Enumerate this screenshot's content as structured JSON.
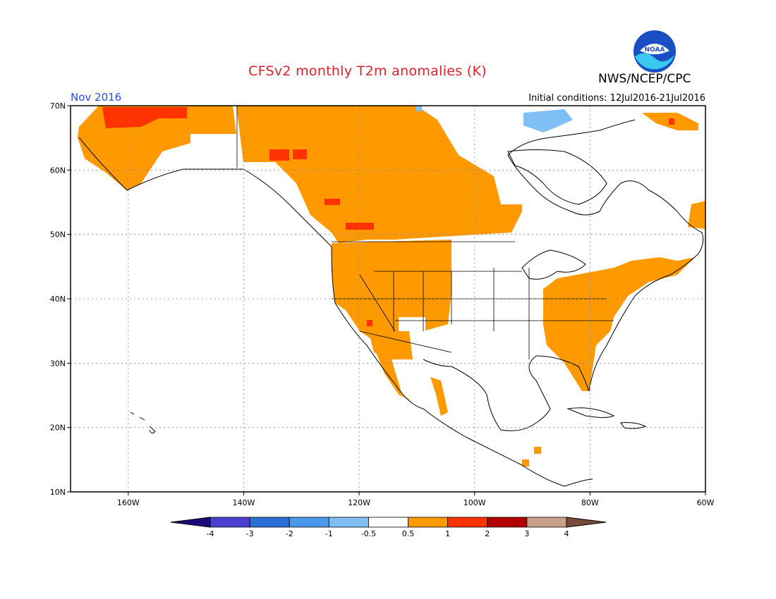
{
  "header": {
    "title": "CFSv2 monthly T2m anomalies (K)",
    "agency": "NWS/NCEP/CPC",
    "month": "Nov 2016",
    "initial_conditions": "Initial conditions: 12Jul2016-21Jul2016",
    "logo_text": "NOAA"
  },
  "map": {
    "lon_labels": [
      "160W",
      "140W",
      "120W",
      "100W",
      "80W",
      "60W"
    ],
    "lat_labels": [
      "70N",
      "60N",
      "50N",
      "40N",
      "30N",
      "20N",
      "10N"
    ],
    "lon_range": [
      -170,
      -60
    ],
    "lat_range": [
      10,
      70
    ],
    "grid": true
  },
  "legend": {
    "labels": [
      "-4",
      "-3",
      "-2",
      "-1",
      "-0.5",
      "0.5",
      "1",
      "2",
      "3",
      "4"
    ],
    "colors": [
      "#1a0a7a",
      "#4a3fcf",
      "#2a6fd6",
      "#4a98ee",
      "#80bff5",
      "#ffffff",
      "#ff9900",
      "#ff3300",
      "#b00000",
      "#c8a08a",
      "#7a4a3a"
    ]
  }
}
